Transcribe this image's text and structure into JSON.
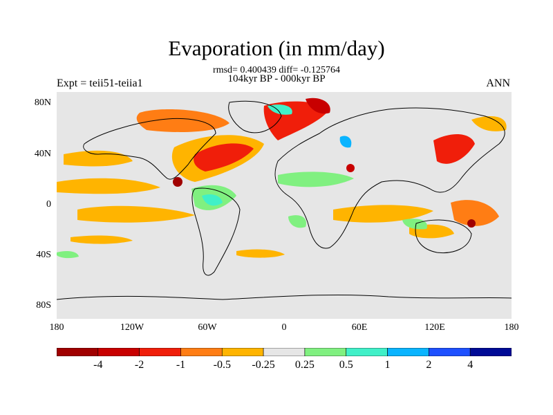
{
  "title": "Evaporation (in mm/day)",
  "stats": "rmsd= 0.400439 diff= -0.125764",
  "period": "104kyr BP - 000kyr BP",
  "experiment": "Expt = teii51-teiia1",
  "season": "ANN",
  "lat_labels": [
    "80N",
    "40N",
    "0",
    "40S",
    "80S"
  ],
  "lon_labels": [
    "180",
    "120W",
    "60W",
    "0",
    "60E",
    "120E",
    "180"
  ],
  "colorbar": {
    "colors": [
      "#a00000",
      "#c80000",
      "#f01e0a",
      "#ff7d14",
      "#ffb400",
      "#e6e6e6",
      "#80f080",
      "#40f0c8",
      "#0ab4ff",
      "#1e50ff",
      "#000a96"
    ],
    "labels": [
      "-4",
      "-2",
      "-1",
      "-0.5",
      "-0.25",
      "0.25",
      "0.5",
      "1",
      "2",
      "4"
    ]
  }
}
